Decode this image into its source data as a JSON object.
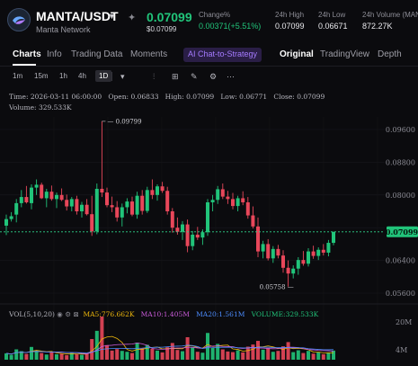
{
  "header": {
    "pair": "MANTA/USDT",
    "network": "Manta Network",
    "last_price": "0.07099",
    "last_price_sub": "$0.07099",
    "stats": [
      {
        "label": "Change%",
        "value": "0.00371(+5.51%)",
        "positive": true
      },
      {
        "label": "24h High",
        "value": "0.07099"
      },
      {
        "label": "24h Low",
        "value": "0.06671"
      },
      {
        "label": "24h Volume (MAN",
        "value": "872.27K"
      }
    ]
  },
  "tabs": {
    "charts": "Charts",
    "info": "Info",
    "trading_data": "Trading Data",
    "moments": "Moments",
    "chat": "AI Chat-to-Strategy",
    "original": "Original",
    "tradingview": "TradingView",
    "depth": "Depth"
  },
  "toolbar": {
    "intervals": [
      "1m",
      "15m",
      "1h",
      "4h",
      "1D"
    ],
    "selected": "1D"
  },
  "ohlc": {
    "time_label": "Time:",
    "time": "2026-03-11 06:00:00",
    "open_label": "Open:",
    "open": "0.06833",
    "high_label": "High:",
    "high": "0.07099",
    "low_label": "Low:",
    "low": "0.06771",
    "close_label": "Close:",
    "close": "0.07099",
    "volume_label": "Volume:",
    "volume": "329.533K"
  },
  "price_axis": {
    "ticks": [
      "0.09600",
      "0.08800",
      "0.08000",
      "0.06400",
      "0.05600"
    ],
    "current_price": "0.07099",
    "annotation_high": "0.09799",
    "annotation_low": "0.05758"
  },
  "volume_legend": {
    "vol_label": "VOL(5,10,20)",
    "ma5": "MA5:776.662K",
    "ma10": "MA10:1.405M",
    "ma20": "MA20:1.561M",
    "volume": "VOLUME:329.533K",
    "axis": [
      "20M",
      "4M"
    ]
  },
  "colors": {
    "up": "#21c47a",
    "down": "#e8475a",
    "background": "#0b0b0e",
    "accent_purple": "#a57bff"
  },
  "candles": [
    [
      0.0725,
      0.0752,
      0.0702,
      0.0741
    ],
    [
      0.0741,
      0.0758,
      0.0735,
      0.0748
    ],
    [
      0.0752,
      0.079,
      0.0733,
      0.078
    ],
    [
      0.078,
      0.0812,
      0.077,
      0.0795
    ],
    [
      0.0795,
      0.0822,
      0.0779,
      0.0782
    ],
    [
      0.078,
      0.0826,
      0.0765,
      0.0818
    ],
    [
      0.0818,
      0.0838,
      0.08,
      0.0825
    ],
    [
      0.0825,
      0.083,
      0.079,
      0.0792
    ],
    [
      0.0792,
      0.0815,
      0.077,
      0.0808
    ],
    [
      0.0808,
      0.0823,
      0.0786,
      0.079
    ],
    [
      0.079,
      0.0806,
      0.0768,
      0.08
    ],
    [
      0.08,
      0.0816,
      0.0785,
      0.0788
    ],
    [
      0.0788,
      0.0801,
      0.0762,
      0.0772
    ],
    [
      0.0772,
      0.0795,
      0.076,
      0.079
    ],
    [
      0.079,
      0.0798,
      0.0752,
      0.076
    ],
    [
      0.076,
      0.0783,
      0.0745,
      0.0776
    ],
    [
      0.0776,
      0.079,
      0.075,
      0.0753
    ],
    [
      0.0753,
      0.0798,
      0.07,
      0.0711
    ],
    [
      0.0711,
      0.0828,
      0.0704,
      0.0815
    ],
    [
      0.0815,
      0.098,
      0.0795,
      0.0806
    ],
    [
      0.0806,
      0.0818,
      0.077,
      0.0775
    ],
    [
      0.0775,
      0.0796,
      0.0758,
      0.077
    ],
    [
      0.077,
      0.0785,
      0.0735,
      0.0745
    ],
    [
      0.0745,
      0.0779,
      0.0723,
      0.077
    ],
    [
      0.077,
      0.0792,
      0.0755,
      0.0784
    ],
    [
      0.0784,
      0.0796,
      0.0748,
      0.0752
    ],
    [
      0.0752,
      0.0808,
      0.0742,
      0.0798
    ],
    [
      0.0798,
      0.0812,
      0.0752,
      0.0761
    ],
    [
      0.0761,
      0.082,
      0.0756,
      0.0812
    ],
    [
      0.0812,
      0.0838,
      0.079,
      0.08
    ],
    [
      0.08,
      0.0826,
      0.0786,
      0.0821
    ],
    [
      0.0821,
      0.0832,
      0.0805,
      0.081
    ],
    [
      0.081,
      0.082,
      0.0752,
      0.076
    ],
    [
      0.076,
      0.0768,
      0.0708,
      0.072
    ],
    [
      0.072,
      0.0745,
      0.0703,
      0.071
    ],
    [
      0.071,
      0.0736,
      0.069,
      0.0728
    ],
    [
      0.0728,
      0.074,
      0.066,
      0.0675
    ],
    [
      0.0675,
      0.0712,
      0.0665,
      0.0703
    ],
    [
      0.0703,
      0.0722,
      0.069,
      0.0696
    ],
    [
      0.0696,
      0.0716,
      0.0678,
      0.0709
    ],
    [
      0.0709,
      0.079,
      0.07,
      0.0782
    ],
    [
      0.0782,
      0.08,
      0.076,
      0.0788
    ],
    [
      0.0788,
      0.0822,
      0.0778,
      0.0814
    ],
    [
      0.0814,
      0.0828,
      0.079,
      0.0796
    ],
    [
      0.0796,
      0.081,
      0.0778,
      0.079
    ],
    [
      0.079,
      0.0805,
      0.0765,
      0.0773
    ],
    [
      0.0773,
      0.0798,
      0.076,
      0.0792
    ],
    [
      0.0792,
      0.0809,
      0.0775,
      0.0782
    ],
    [
      0.0782,
      0.0795,
      0.0742,
      0.075
    ],
    [
      0.075,
      0.0772,
      0.0718,
      0.0723
    ],
    [
      0.0723,
      0.0745,
      0.0648,
      0.0662
    ],
    [
      0.0662,
      0.0688,
      0.0645,
      0.068
    ],
    [
      0.068,
      0.0692,
      0.064,
      0.0645
    ],
    [
      0.0645,
      0.0675,
      0.0634,
      0.0668
    ],
    [
      0.0668,
      0.0678,
      0.0645,
      0.0652
    ],
    [
      0.0652,
      0.0665,
      0.061,
      0.0622
    ],
    [
      0.0622,
      0.064,
      0.0576,
      0.0608
    ],
    [
      0.0608,
      0.0628,
      0.0596,
      0.062
    ],
    [
      0.062,
      0.0648,
      0.0605,
      0.0641
    ],
    [
      0.0641,
      0.0663,
      0.0627,
      0.0632
    ],
    [
      0.0632,
      0.067,
      0.0625,
      0.0662
    ],
    [
      0.0662,
      0.0676,
      0.0644,
      0.0651
    ],
    [
      0.0651,
      0.0672,
      0.0641,
      0.0666
    ],
    [
      0.0666,
      0.068,
      0.0652,
      0.0659
    ],
    [
      0.0659,
      0.069,
      0.065,
      0.0683
    ],
    [
      0.0683,
      0.071,
      0.0677,
      0.071
    ]
  ],
  "volumes": [
    2.1,
    1.6,
    3.4,
    2.8,
    1.9,
    4.2,
    3.1,
    2.2,
    1.7,
    2.5,
    1.8,
    2.0,
    1.5,
    2.2,
    1.9,
    1.6,
    2.0,
    6.8,
    9.5,
    14.2,
    4.8,
    3.0,
    3.5,
    2.9,
    2.6,
    2.2,
    5.6,
    3.8,
    4.9,
    3.6,
    3.0,
    2.4,
    4.1,
    5.5,
    3.2,
    2.8,
    7.4,
    4.0,
    2.6,
    2.3,
    8.8,
    3.9,
    5.2,
    3.4,
    2.7,
    2.5,
    3.1,
    2.4,
    4.3,
    5.0,
    6.2,
    3.3,
    3.9,
    2.6,
    2.9,
    4.4,
    5.8,
    2.5,
    3.1,
    2.2,
    2.9,
    2.0,
    2.4,
    1.8,
    2.3,
    3.0
  ]
}
